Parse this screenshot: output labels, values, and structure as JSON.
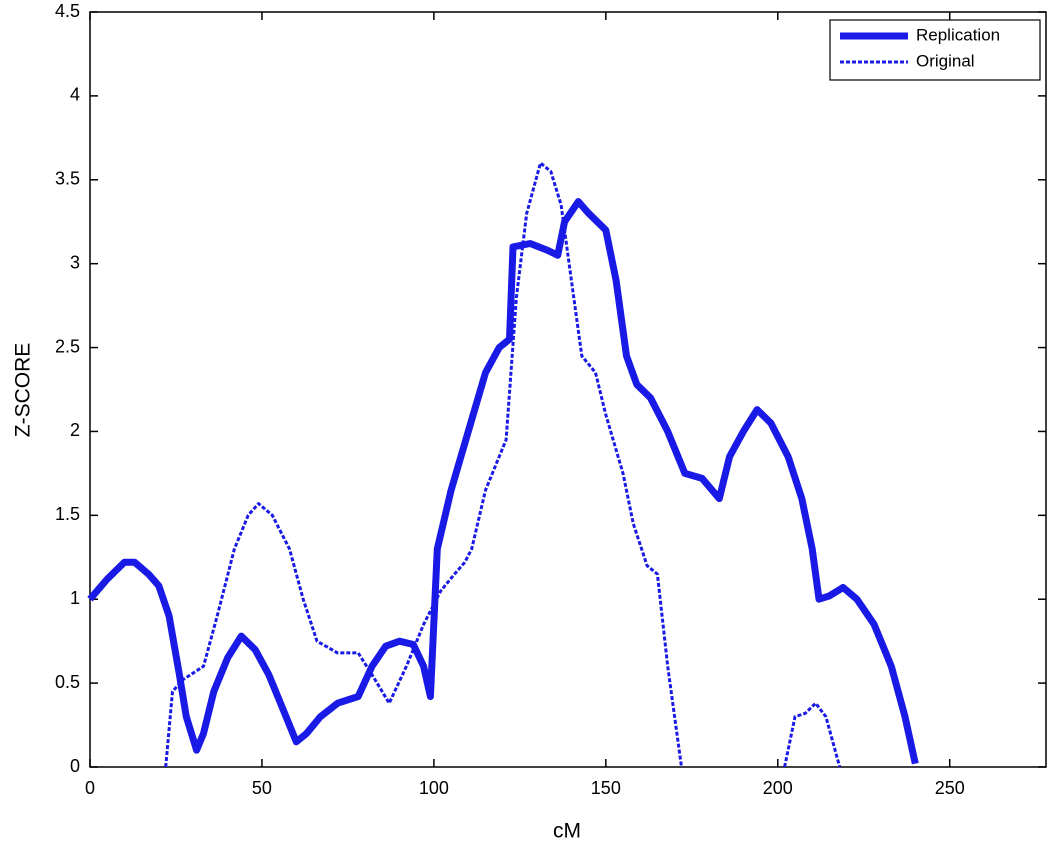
{
  "chart_data": {
    "type": "line",
    "xlabel": "cM",
    "ylabel": "Z-SCORE",
    "xlim": [
      0,
      278
    ],
    "ylim": [
      0,
      4.5
    ],
    "xticks": [
      0,
      50,
      100,
      150,
      200,
      250
    ],
    "yticks": [
      0,
      0.5,
      1,
      1.5,
      2,
      2.5,
      3,
      3.5,
      4,
      4.5
    ],
    "legend": "upper right",
    "series": [
      {
        "name": "Replication",
        "color": "#1a1ae6",
        "style": "solid",
        "x": [
          0,
          5,
          10,
          13,
          17,
          20,
          23,
          26,
          28,
          31,
          33,
          36,
          40,
          44,
          48,
          52,
          56,
          60,
          63,
          67,
          72,
          78,
          82,
          86,
          90,
          94,
          97,
          99,
          101,
          105,
          110,
          115,
          119,
          122,
          123,
          128,
          133,
          136,
          138,
          142,
          145,
          150,
          153,
          156,
          159,
          163,
          168,
          173,
          178,
          183,
          186,
          190,
          194,
          198,
          203,
          207,
          210,
          212,
          215,
          219,
          223,
          228,
          233,
          237,
          240
        ],
        "values": [
          1.0,
          1.12,
          1.22,
          1.22,
          1.15,
          1.08,
          0.9,
          0.55,
          0.3,
          0.1,
          0.2,
          0.45,
          0.65,
          0.78,
          0.7,
          0.55,
          0.35,
          0.15,
          0.2,
          0.3,
          0.38,
          0.42,
          0.6,
          0.72,
          0.75,
          0.73,
          0.6,
          0.42,
          1.3,
          1.65,
          2.0,
          2.35,
          2.5,
          2.55,
          3.1,
          3.12,
          3.08,
          3.05,
          3.25,
          3.37,
          3.3,
          3.2,
          2.9,
          2.45,
          2.28,
          2.2,
          2.0,
          1.75,
          1.72,
          1.6,
          1.85,
          2.0,
          2.13,
          2.05,
          1.85,
          1.6,
          1.3,
          1.0,
          1.02,
          1.07,
          1.0,
          0.85,
          0.6,
          0.3,
          0.02
        ]
      },
      {
        "name": "Original",
        "color": "#1a1ae6",
        "style": "dashed",
        "x": [
          22,
          24,
          27,
          33,
          37,
          42,
          46,
          49,
          53,
          58,
          62,
          66,
          72,
          78,
          82,
          87,
          92,
          97,
          102,
          106,
          109,
          111,
          115,
          119,
          121,
          124,
          127,
          131,
          134,
          137,
          140,
          143,
          147,
          150,
          155,
          158,
          162,
          165,
          168,
          172,
          null,
          202,
          205,
          208,
          211,
          214,
          218
        ],
        "values": [
          0,
          0.45,
          0.52,
          0.6,
          0.9,
          1.3,
          1.5,
          1.57,
          1.5,
          1.3,
          1.0,
          0.75,
          0.68,
          0.68,
          0.55,
          0.38,
          0.6,
          0.85,
          1.05,
          1.15,
          1.22,
          1.3,
          1.65,
          1.85,
          1.95,
          2.8,
          3.3,
          3.6,
          3.55,
          3.35,
          2.9,
          2.45,
          2.35,
          2.1,
          1.75,
          1.45,
          1.2,
          1.15,
          0.6,
          0,
          null,
          0,
          0.3,
          0.32,
          0.38,
          0.3,
          0
        ]
      }
    ]
  }
}
